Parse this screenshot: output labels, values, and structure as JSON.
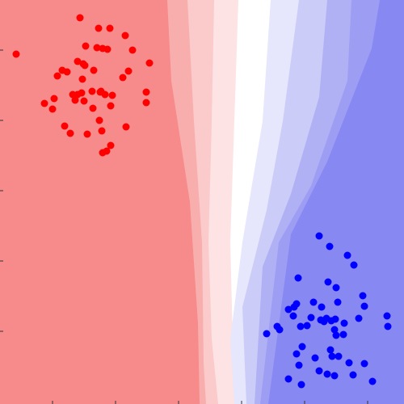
{
  "chart_data": {
    "type": "scatter",
    "xlim": [
      0,
      500
    ],
    "ylim": [
      0,
      500
    ],
    "xticks": [
      65,
      143,
      221,
      299,
      377,
      455
    ],
    "yticks": [
      90,
      177,
      264,
      351,
      438
    ],
    "series": [
      {
        "color": "#ff0000",
        "x": [
          99,
          122,
          136,
          155,
          20,
          106,
          120,
          127,
          133,
          164,
          96,
          103,
          105,
          185,
          77,
          71,
          83,
          116,
          159,
          102,
          152,
          90,
          96,
          101,
          114,
          124,
          125,
          130,
          139,
          181,
          55,
          67,
          93,
          104,
          137,
          181,
          65,
          115,
          123,
          80,
          87,
          108,
          156,
          126,
          137,
          127,
          132
        ],
        "y": [
          478,
          465,
          465,
          456,
          433,
          443,
          441,
          440,
          439,
          438,
          424,
          421,
          419,
          422,
          413,
          406,
          411,
          413,
          412,
          402,
          404,
          383,
          383,
          385,
          387,
          386,
          387,
          383,
          382,
          386,
          372,
          378,
          376,
          375,
          369,
          373,
          365,
          366,
          351,
          344,
          335,
          334,
          343,
          338,
          320,
          311,
          313
        ]
      },
      {
        "color": "#0000ff",
        "x": [
          395,
          408,
          430,
          438,
          369,
          406,
          416,
          449,
          364,
          388,
          367,
          357,
          398,
          418,
          451,
          479,
          363,
          385,
          397,
          401,
          404,
          410,
          415,
          426,
          444,
          343,
          346,
          330,
          372,
          380,
          414,
          416,
          425,
          480,
          374,
          367,
          409,
          419,
          390,
          411,
          432,
          451,
          370,
          395,
          405,
          414,
          437,
          357,
          461,
          373
        ],
        "y": [
          208,
          195,
          184,
          172,
          156,
          151,
          144,
          134,
          120,
          126,
          124,
          117,
          120,
          126,
          121,
          109,
          109,
          107,
          104,
          102,
          106,
          103,
          105,
          100,
          106,
          96,
          92,
          87,
          96,
          97,
          92,
          85,
          86,
          96,
          71,
          62,
          67,
          59,
          57,
          59,
          51,
          50,
          48,
          41,
          37,
          35,
          36,
          31,
          28,
          24
        ]
      }
    ]
  }
}
